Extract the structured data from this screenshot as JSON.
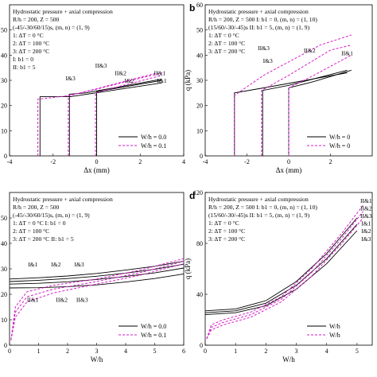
{
  "chart_data": [
    {
      "id": "a",
      "panel_label": "",
      "type": "line",
      "xlabel": "Δx (mm)",
      "ylabel": "",
      "xlim": [
        -4,
        4
      ],
      "ylim": [
        0,
        60
      ],
      "xticks": [
        -4,
        -2,
        0,
        2,
        4
      ],
      "yticks": [
        0,
        10,
        20,
        30,
        40,
        50
      ],
      "notes": [
        "Hydrostatic pressure + axial compression",
        "R/h = 200, Z = 500",
        "(-45/-30/60/15)s, (m, n) = (1, 9)",
        "1: ΔT = 0 °C",
        "2: ΔT = 100 °C",
        "3: ΔT = 200 °C",
        "I: b1 = 0",
        "II: b1 = 5"
      ],
      "legend": [
        "W/h = 0.0",
        "W/h = 0.1"
      ],
      "curve_labels": [
        {
          "text": "II&3",
          "x": 0.2,
          "y": 35
        },
        {
          "text": "I&3",
          "x": -1.2,
          "y": 30
        },
        {
          "text": "II&2",
          "x": 1.1,
          "y": 32
        },
        {
          "text": "I&2",
          "x": 1.5,
          "y": 29
        },
        {
          "text": "II&1",
          "x": 2.9,
          "y": 32
        },
        {
          "text": "I&1",
          "x": 3.0,
          "y": 29
        }
      ],
      "series": [
        {
          "style": "solid",
          "points": [
            [
              -2.6,
              0
            ],
            [
              -2.6,
              23.5
            ],
            [
              -1.2,
              23.5
            ],
            [
              3.0,
              29
            ]
          ]
        },
        {
          "style": "solid",
          "points": [
            [
              -1.25,
              0
            ],
            [
              -1.25,
              24.5
            ],
            [
              -0.5,
              25
            ],
            [
              3.0,
              30.5
            ]
          ]
        },
        {
          "style": "solid",
          "points": [
            [
              0,
              0
            ],
            [
              0,
              25.5
            ],
            [
              1.0,
              27
            ],
            [
              3.0,
              30
            ]
          ]
        },
        {
          "style": "dashed",
          "points": [
            [
              -2.7,
              0
            ],
            [
              -2.7,
              22.5
            ],
            [
              -1.2,
              24
            ],
            [
              2.8,
              33
            ]
          ]
        },
        {
          "style": "dashed",
          "points": [
            [
              -1.3,
              0
            ],
            [
              -1.3,
              24
            ],
            [
              0,
              26.5
            ],
            [
              3.0,
              33
            ]
          ]
        },
        {
          "style": "dashed",
          "points": [
            [
              -0.05,
              0
            ],
            [
              -0.05,
              25
            ],
            [
              1.0,
              27.5
            ],
            [
              3.0,
              32
            ]
          ]
        }
      ]
    },
    {
      "id": "b",
      "panel_label": "b",
      "type": "line",
      "xlabel": "Δx (mm)",
      "ylabel": "q (kPa)",
      "xlim": [
        -4,
        4
      ],
      "ylim": [
        0,
        60
      ],
      "xticks": [
        -4,
        -2,
        0,
        2
      ],
      "yticks": [
        0,
        10,
        20,
        30,
        40,
        50,
        60
      ],
      "notes": [
        "Hydrostatic pressure + axial compression",
        "R/h = 200, Z = 500   I: b1 = 0, (m, n) = (1, 10)",
        "(15/60/-30/-45)s II: b1 = 5, (m, n) = (1, 9)",
        "1: ΔT = 0 °C",
        "2: ΔT = 100 °C",
        "3: ΔT = 200 °C"
      ],
      "legend": [
        "W/h = 0",
        "W/h = 0"
      ],
      "curve_labels": [
        {
          "text": "II&3",
          "x": -1.2,
          "y": 42
        },
        {
          "text": "II&2",
          "x": 1.0,
          "y": 41
        },
        {
          "text": "I&3",
          "x": -1.0,
          "y": 37
        },
        {
          "text": "II&1",
          "x": 2.8,
          "y": 40
        }
      ],
      "series": [
        {
          "style": "solid",
          "points": [
            [
              -2.6,
              0
            ],
            [
              -2.6,
              25
            ],
            [
              -1.2,
              27
            ],
            [
              2.8,
              33
            ]
          ]
        },
        {
          "style": "solid",
          "points": [
            [
              -1.25,
              0
            ],
            [
              -1.25,
              26
            ],
            [
              0,
              28
            ],
            [
              2.8,
              34
            ]
          ]
        },
        {
          "style": "solid",
          "points": [
            [
              0,
              0
            ],
            [
              0,
              27
            ],
            [
              1.2,
              29.5
            ],
            [
              3.0,
              34
            ]
          ]
        },
        {
          "style": "dashed",
          "points": [
            [
              -2.6,
              0
            ],
            [
              -2.6,
              24
            ],
            [
              -1.2,
              32
            ],
            [
              1.5,
              44
            ],
            [
              3.0,
              48
            ]
          ]
        },
        {
          "style": "dashed",
          "points": [
            [
              -1.3,
              0
            ],
            [
              -1.3,
              26
            ],
            [
              0,
              32
            ],
            [
              2.0,
              42
            ],
            [
              3.0,
              44
            ]
          ]
        },
        {
          "style": "dashed",
          "points": [
            [
              0,
              0
            ],
            [
              0,
              27
            ],
            [
              1.2,
              32
            ],
            [
              3.0,
              40
            ]
          ]
        }
      ]
    },
    {
      "id": "c",
      "panel_label": "",
      "type": "line",
      "xlabel": "W/h",
      "ylabel": "",
      "xlim": [
        0,
        6
      ],
      "ylim": [
        0,
        60
      ],
      "xticks": [
        0,
        1,
        2,
        3,
        4,
        5,
        6
      ],
      "yticks": [
        0,
        10,
        20,
        30,
        40,
        50
      ],
      "notes": [
        "Hydrostatic pressure + axial compression",
        "R/h = 200, Z = 500",
        "(-45/-30/60/15)s, (m, n) = (1, 9)",
        "1: ΔT = 0 °C   I: b1 = 0",
        "2: ΔT = 100 °C",
        "3: ΔT = 200 °C   II: b1 = 5"
      ],
      "legend": [
        "W/h = 0.0",
        "W/h = 0.1"
      ],
      "curve_labels": [
        {
          "text": "I&1",
          "x": 0.8,
          "y": 31
        },
        {
          "text": "I&2",
          "x": 1.6,
          "y": 31
        },
        {
          "text": "I&3",
          "x": 2.4,
          "y": 31
        },
        {
          "text": "II&1",
          "x": 0.8,
          "y": 17
        },
        {
          "text": "II&2",
          "x": 1.8,
          "y": 17
        },
        {
          "text": "II&3",
          "x": 2.5,
          "y": 17
        }
      ],
      "series": [
        {
          "style": "solid",
          "points": [
            [
              0,
              26
            ],
            [
              1,
              26.5
            ],
            [
              2,
              27.2
            ],
            [
              3,
              28.2
            ],
            [
              4,
              29.5
            ],
            [
              5,
              31
            ],
            [
              6,
              33
            ]
          ]
        },
        {
          "style": "solid",
          "points": [
            [
              0,
              25
            ],
            [
              1,
              25.5
            ],
            [
              2,
              26.2
            ],
            [
              3,
              27.1
            ],
            [
              4,
              28.3
            ],
            [
              5,
              29.8
            ],
            [
              6,
              31.8
            ]
          ]
        },
        {
          "style": "solid",
          "points": [
            [
              0,
              24
            ],
            [
              1,
              24.3
            ],
            [
              2,
              24.9
            ],
            [
              3,
              25.8
            ],
            [
              4,
              27
            ],
            [
              5,
              28.4
            ],
            [
              6,
              30.3
            ]
          ]
        },
        {
          "style": "solid",
          "points": [
            [
              0,
              22.5
            ],
            [
              1,
              22.6
            ],
            [
              2,
              23
            ],
            [
              3,
              23.7
            ],
            [
              4,
              24.8
            ],
            [
              5,
              26.2
            ],
            [
              6,
              28
            ]
          ]
        },
        {
          "style": "dashed",
          "points": [
            [
              0.05,
              2
            ],
            [
              0.2,
              15
            ],
            [
              0.6,
              21
            ],
            [
              1.5,
              23.5
            ],
            [
              3,
              26
            ],
            [
              4.5,
              29.5
            ],
            [
              6,
              34
            ]
          ]
        },
        {
          "style": "dashed",
          "points": [
            [
              0.05,
              2
            ],
            [
              0.2,
              13
            ],
            [
              0.6,
              19
            ],
            [
              1.5,
              22
            ],
            [
              3,
              25
            ],
            [
              4.5,
              28.5
            ],
            [
              6,
              33
            ]
          ]
        },
        {
          "style": "dashed",
          "points": [
            [
              0.05,
              2
            ],
            [
              0.2,
              11
            ],
            [
              0.6,
              17
            ],
            [
              1.5,
              20.5
            ],
            [
              3,
              24
            ],
            [
              4.5,
              27.5
            ],
            [
              6,
              32
            ]
          ]
        }
      ]
    },
    {
      "id": "d",
      "panel_label": "d",
      "type": "line",
      "xlabel": "W/h",
      "ylabel": "q (kPa)",
      "xlim": [
        0,
        5.5
      ],
      "ylim": [
        0,
        120
      ],
      "xticks": [
        0,
        1,
        2,
        3,
        4,
        5
      ],
      "yticks": [
        0,
        40,
        80,
        120
      ],
      "notes": [
        "Hydrostatic pressure + axial compression",
        "R/h = 200, Z = 500   I: b1 = 0, (m, n) = (1, 10)",
        "(15/60/-30/-45)s II: b1 = 5, (m, n) = (1, 9)",
        "1: ΔT = 0 °C",
        "2: ΔT = 100 °C",
        "3: ΔT = 200 °C"
      ],
      "legend": [
        "W/h",
        "W/h"
      ],
      "curve_labels": [
        {
          "text": "II&1",
          "x": 5.3,
          "y": 112
        },
        {
          "text": "II&2",
          "x": 5.3,
          "y": 106
        },
        {
          "text": "II&3",
          "x": 5.3,
          "y": 100
        },
        {
          "text": "I&1",
          "x": 5.3,
          "y": 94
        },
        {
          "text": "I&2",
          "x": 5.3,
          "y": 88
        },
        {
          "text": "I&3",
          "x": 5.3,
          "y": 82
        }
      ],
      "series": [
        {
          "style": "solid",
          "points": [
            [
              0,
              24
            ],
            [
              1,
              25.5
            ],
            [
              2,
              31
            ],
            [
              3,
              44
            ],
            [
              4,
              64
            ],
            [
              5,
              90
            ]
          ]
        },
        {
          "style": "solid",
          "points": [
            [
              0,
              25.5
            ],
            [
              1,
              27
            ],
            [
              2,
              33
            ],
            [
              3,
              47
            ],
            [
              4,
              68
            ],
            [
              5,
              95
            ]
          ]
        },
        {
          "style": "solid",
          "points": [
            [
              0,
              27
            ],
            [
              1,
              28.5
            ],
            [
              2,
              35
            ],
            [
              3,
              50
            ],
            [
              4,
              72
            ],
            [
              5,
              100
            ]
          ]
        },
        {
          "style": "dashed",
          "points": [
            [
              0.05,
              5
            ],
            [
              0.2,
              16
            ],
            [
              0.6,
              20
            ],
            [
              1.5,
              26
            ],
            [
              2.5,
              38
            ],
            [
              3.5,
              60
            ],
            [
              4.5,
              88
            ],
            [
              5.2,
              110
            ]
          ]
        },
        {
          "style": "dashed",
          "points": [
            [
              0.05,
              5
            ],
            [
              0.2,
              14
            ],
            [
              0.6,
              18
            ],
            [
              1.5,
              24
            ],
            [
              2.5,
              36
            ],
            [
              3.5,
              57
            ],
            [
              4.5,
              84
            ],
            [
              5.2,
              105
            ]
          ]
        },
        {
          "style": "dashed",
          "points": [
            [
              0.05,
              5
            ],
            [
              0.2,
              12
            ],
            [
              0.6,
              16
            ],
            [
              1.5,
              22
            ],
            [
              2.5,
              34
            ],
            [
              3.5,
              54
            ],
            [
              4.5,
              80
            ],
            [
              5.2,
              100
            ]
          ]
        }
      ]
    }
  ]
}
